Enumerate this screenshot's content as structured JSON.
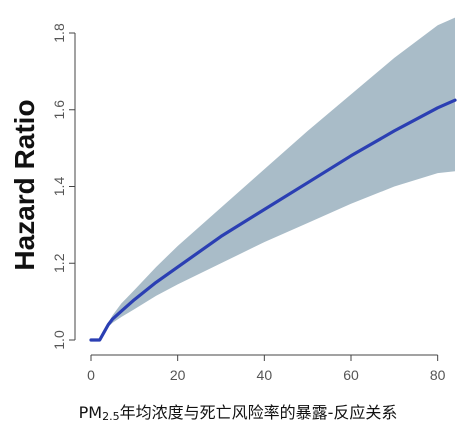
{
  "chart_data": {
    "type": "area",
    "title": "",
    "xlabel": "",
    "ylabel": "Hazard Ratio",
    "xlim": [
      0,
      84
    ],
    "ylim": [
      1.0,
      1.8
    ],
    "x_ticks": [
      0,
      20,
      40,
      60,
      80
    ],
    "y_ticks": [
      1.0,
      1.2,
      1.4,
      1.6,
      1.8
    ],
    "grid": false,
    "series": [
      {
        "color": "#2b3fb3",
        "x": [
          0,
          2,
          3,
          4,
          5,
          7,
          10,
          15,
          20,
          30,
          40,
          50,
          60,
          70,
          80,
          84
        ],
        "values": [
          1.0,
          1.0,
          1.02,
          1.04,
          1.055,
          1.075,
          1.105,
          1.15,
          1.19,
          1.27,
          1.34,
          1.41,
          1.48,
          1.545,
          1.605,
          1.625
        ]
      }
    ],
    "confidence_band": {
      "color": "#a9bcc8",
      "x": [
        0,
        2,
        3,
        4,
        5,
        7,
        10,
        15,
        20,
        30,
        40,
        50,
        60,
        70,
        80,
        84
      ],
      "upper": [
        1.0,
        1.0,
        1.02,
        1.045,
        1.065,
        1.095,
        1.13,
        1.19,
        1.245,
        1.345,
        1.445,
        1.545,
        1.64,
        1.735,
        1.82,
        1.84
      ],
      "lower": [
        1.0,
        1.0,
        1.02,
        1.035,
        1.045,
        1.06,
        1.08,
        1.115,
        1.145,
        1.2,
        1.255,
        1.305,
        1.355,
        1.4,
        1.435,
        1.44
      ]
    }
  },
  "caption": {
    "prefix": "PM",
    "subscript": "2.5",
    "text": "年均浓度与死亡风险率的暴露-反应关系"
  }
}
